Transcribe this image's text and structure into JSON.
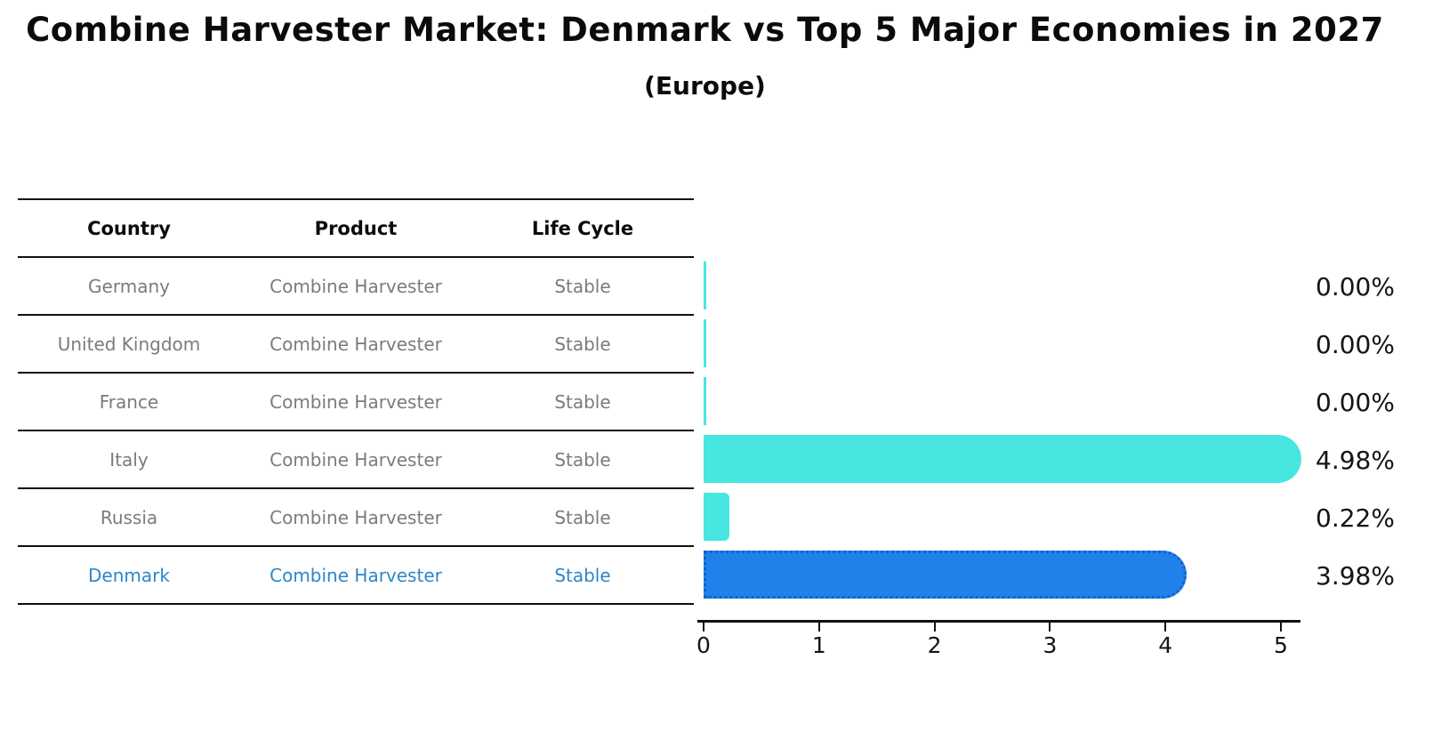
{
  "title": "Combine Harvester Market: Denmark vs Top 5 Major Economies in 2027",
  "subtitle": "(Europe)",
  "table": {
    "headers": [
      "Country",
      "Product",
      "Life Cycle"
    ],
    "rows": [
      {
        "country": "Germany",
        "product": "Combine Harvester",
        "life_cycle": "Stable",
        "highlight": false
      },
      {
        "country": "United Kingdom",
        "product": "Combine Harvester",
        "life_cycle": "Stable",
        "highlight": false
      },
      {
        "country": "France",
        "product": "Combine Harvester",
        "life_cycle": "Stable",
        "highlight": false
      },
      {
        "country": "Italy",
        "product": "Combine Harvester",
        "life_cycle": "Stable",
        "highlight": false
      },
      {
        "country": "Russia",
        "product": "Combine Harvester",
        "life_cycle": "Stable",
        "highlight": false
      },
      {
        "country": "Denmark",
        "product": "Combine Harvester",
        "life_cycle": "Stable",
        "highlight": true
      }
    ]
  },
  "chart_data": {
    "type": "bar",
    "orientation": "horizontal",
    "categories": [
      "Germany",
      "United Kingdom",
      "France",
      "Italy",
      "Russia",
      "Denmark"
    ],
    "values": [
      0.0,
      0.0,
      0.0,
      4.98,
      0.22,
      3.98
    ],
    "value_labels": [
      "0.00%",
      "0.00%",
      "0.00%",
      "4.98%",
      "0.22%",
      "3.98%"
    ],
    "highlight_index": 5,
    "x_ticks": [
      "0",
      "1",
      "2",
      "3",
      "4",
      "5"
    ],
    "xlim": [
      0,
      5
    ],
    "grid": false,
    "legend": "none",
    "bar_color": "#47e6e0",
    "highlight_bar_color": "#2181ea",
    "highlight_border_color": "#1462cd",
    "highlight_text_color": "#2e86c8"
  }
}
